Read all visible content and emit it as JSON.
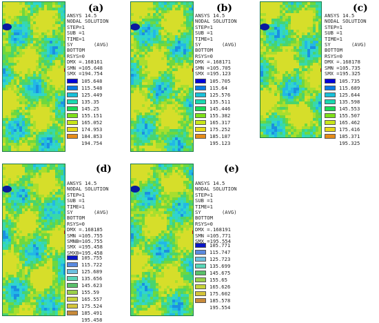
{
  "panels": [
    {
      "letter": "(a)",
      "info": [
        "ANSYS 14.5",
        "NODAL SOLUTION",
        "STEP=1",
        "SUB =1",
        "TIME=1",
        "SY       (AVG)",
        "BOTTOM",
        "RSYS=0",
        "DMX =.168161",
        "SMN =105.648",
        "SMX =194.754"
      ],
      "legend": [
        "105.648",
        "115.548",
        "125.449",
        "135.35",
        "145.25",
        "155.151",
        "165.052",
        "174.953",
        "184.853",
        "194.754"
      ]
    },
    {
      "letter": "(b)",
      "info": [
        "ANSYS 14.5",
        "NODAL SOLUTION",
        "STEP=1",
        "SUB =1",
        "TIME=1",
        "SY       (AVG)",
        "BOTTOM",
        "RSYS=0",
        "DMX =.168171",
        "SMN =105.705",
        "SMX =195.123"
      ],
      "legend": [
        "105.705",
        "115.64",
        "125.576",
        "135.511",
        "145.446",
        "155.382",
        "165.317",
        "175.252",
        "185.187",
        "195.123"
      ]
    },
    {
      "letter": "(c)",
      "info": [
        "ANSYS 14.5",
        "NODAL SOLUTION",
        "STEP=1",
        "SUB =1",
        "TIME=1",
        "SY       (AVG)",
        "BOTTOM",
        "RSYS=0",
        "DMX =.168178",
        "SMN =105.735",
        "SMX =195.325"
      ],
      "legend": [
        "105.735",
        "115.689",
        "125.644",
        "135.598",
        "145.553",
        "155.507",
        "165.462",
        "175.416",
        "185.371",
        "195.325"
      ]
    },
    {
      "letter": "(d)",
      "info": [
        "ANSYS 14.5",
        "NODAL SOLUTION",
        "STEP=1",
        "SUB =1",
        "TIME=1",
        "SY       (AVG)",
        "BOTTOM",
        "RSYS=0",
        "DMX =.168185",
        "SMN =105.755",
        "SMNB=105.755",
        "SMX =195.458",
        "SMXB=195.458"
      ],
      "legend": [
        "105.755",
        "115.722",
        "125.689",
        "135.656",
        "145.623",
        "155.59",
        "165.557",
        "175.524",
        "185.491",
        "195.458"
      ]
    },
    {
      "letter": "(e)",
      "info": [
        "ANSYS 14.5",
        "NODAL SOLUTION",
        "STEP=1",
        "SUB =1",
        "TIME=1",
        "SY       (AVG)",
        "BOTTOM",
        "RSYS=0",
        "DMX =.168191",
        "SMN =105.771",
        "SMX =195.554"
      ],
      "legend": [
        "105.771",
        "115.747",
        "125.723",
        "135.699",
        "145.675",
        "155.65",
        "165.626",
        "175.602",
        "185.578",
        "195.554"
      ]
    }
  ],
  "colors": {
    "standard": [
      "#0000d9",
      "#0a7ae6",
      "#19c0d9",
      "#19d9b0",
      "#1ad957",
      "#7fe01a",
      "#c8e61a",
      "#e6d919",
      "#e68c19",
      "#e61919"
    ],
    "muted": [
      "#0a16c8",
      "#5a8ae0",
      "#6cc0e0",
      "#5ad6b8",
      "#5ac06a",
      "#9ad04a",
      "#c8d43a",
      "#d4c43a",
      "#c88a3a",
      "#a03a2a"
    ],
    "field": [
      "#1b8fe0",
      "#22b8e6",
      "#2fd4d0",
      "#38d9a8",
      "#48d46e",
      "#6fd83e",
      "#a8de2e",
      "#d6de2a"
    ]
  }
}
